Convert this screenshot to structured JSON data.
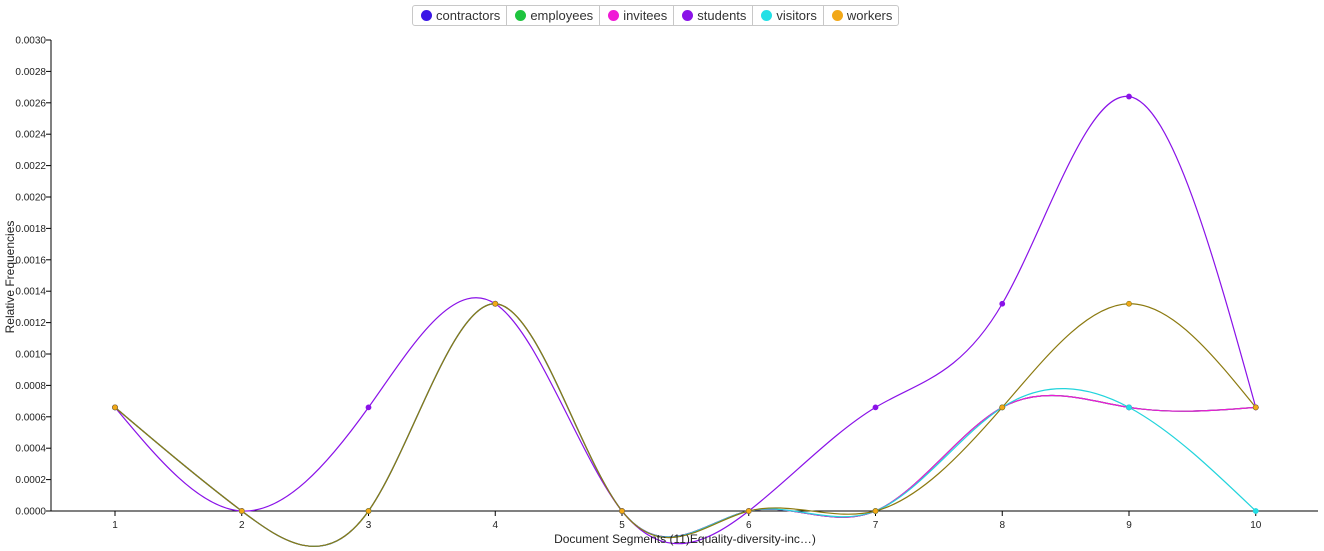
{
  "chart_data": {
    "type": "line",
    "xlabel": "Document Segments (11)Equality-diversity-inc…)",
    "ylabel": "Relative Frequencies",
    "x": [
      1,
      2,
      3,
      4,
      5,
      6,
      7,
      8,
      9,
      10
    ],
    "ylim": [
      0,
      0.003
    ],
    "yticks": [
      "0.0000",
      "0.0002",
      "0.0004",
      "0.0006",
      "0.0008",
      "0.0010",
      "0.0012",
      "0.0014",
      "0.0016",
      "0.0018",
      "0.0020",
      "0.0022",
      "0.0024",
      "0.0026",
      "0.0028",
      "0.0030"
    ],
    "xticks": [
      "1",
      "2",
      "3",
      "4",
      "5",
      "6",
      "7",
      "8",
      "9",
      "10"
    ],
    "grid": false,
    "legend_position": "top-center",
    "series": [
      {
        "name": "contractors",
        "color": "#3a16e6",
        "line_color": "#3a16e6",
        "values": [
          0.00066,
          0,
          0,
          0.00132,
          0,
          0,
          0,
          0.00066,
          0.00066,
          0.00066
        ]
      },
      {
        "name": "employees",
        "color": "#1ec43e",
        "line_color": "#1ec43e",
        "values": [
          0.00066,
          0,
          0,
          0.00132,
          0,
          0,
          0,
          0.00066,
          0.00066,
          0.00066
        ]
      },
      {
        "name": "invitees",
        "color": "#f01ad6",
        "line_color": "#f01ad6",
        "values": [
          0.00066,
          0,
          0,
          0.00132,
          0,
          0,
          0,
          0.00066,
          0.00066,
          0.00066
        ]
      },
      {
        "name": "students",
        "color": "#8a12e8",
        "line_color": "#8a12e8",
        "values": [
          0.00066,
          0,
          0.00066,
          0.00132,
          0,
          0,
          0.00066,
          0.00132,
          0.00264,
          0.00066
        ]
      },
      {
        "name": "visitors",
        "color": "#22e0e6",
        "line_color": "#22d4dc",
        "values": [
          0.00066,
          0,
          0,
          0.00132,
          0,
          0,
          0,
          0.00066,
          0.00066,
          0
        ]
      },
      {
        "name": "workers",
        "color": "#f2a818",
        "line_color": "#8c7a10",
        "values": [
          0.00066,
          0,
          0,
          0.00132,
          0,
          0,
          0,
          0.00066,
          0.00132,
          0.00066
        ]
      }
    ]
  }
}
